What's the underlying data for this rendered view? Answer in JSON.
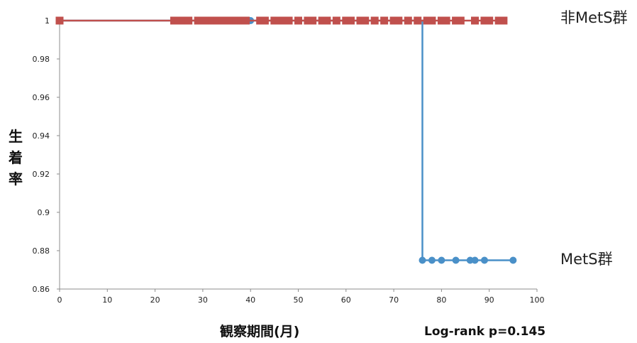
{
  "chart_data": {
    "type": "line",
    "title": "",
    "xlabel": "観察期間(月)",
    "ylabel": "生着率",
    "xlim": [
      0,
      100
    ],
    "ylim": [
      0.86,
      1.0
    ],
    "x_ticks": [
      0,
      10,
      20,
      30,
      40,
      50,
      60,
      70,
      80,
      90,
      100
    ],
    "y_ticks": [
      0.86,
      0.88,
      0.9,
      0.92,
      0.94,
      0.96,
      0.98,
      1
    ],
    "y_tick_labels": [
      "0.86",
      "0.88",
      "0.9",
      "0.92",
      "0.94",
      "0.96",
      "0.98",
      "1"
    ],
    "annotation": "Log-rank p=0.145",
    "series": [
      {
        "name": "非MetS群",
        "color": "#c0504d",
        "marker": "square",
        "step_x": [
          0,
          93
        ],
        "step_y": [
          1,
          1
        ],
        "censor_x": [
          0,
          24,
          25,
          26,
          27,
          29,
          30,
          31,
          32,
          33,
          34,
          35,
          36,
          37,
          38,
          39,
          42,
          43,
          45,
          46,
          47,
          48,
          50,
          52,
          53,
          55,
          56,
          58,
          60,
          61,
          63,
          64,
          66,
          68,
          70,
          71,
          73,
          75,
          77,
          78,
          80,
          81,
          83,
          84,
          87,
          89,
          90,
          92,
          93
        ],
        "censor_y": 1
      },
      {
        "name": "MetS群",
        "color": "#4a90c8",
        "marker": "circle",
        "step_x": [
          0,
          76,
          76,
          95
        ],
        "step_y": [
          1,
          1,
          0.875,
          0.875
        ],
        "censor_x": [
          40,
          76,
          78,
          80,
          83,
          86,
          87,
          89,
          95
        ],
        "censor_y": [
          1,
          0.875,
          0.875,
          0.875,
          0.875,
          0.875,
          0.875,
          0.875,
          0.875
        ]
      }
    ]
  }
}
